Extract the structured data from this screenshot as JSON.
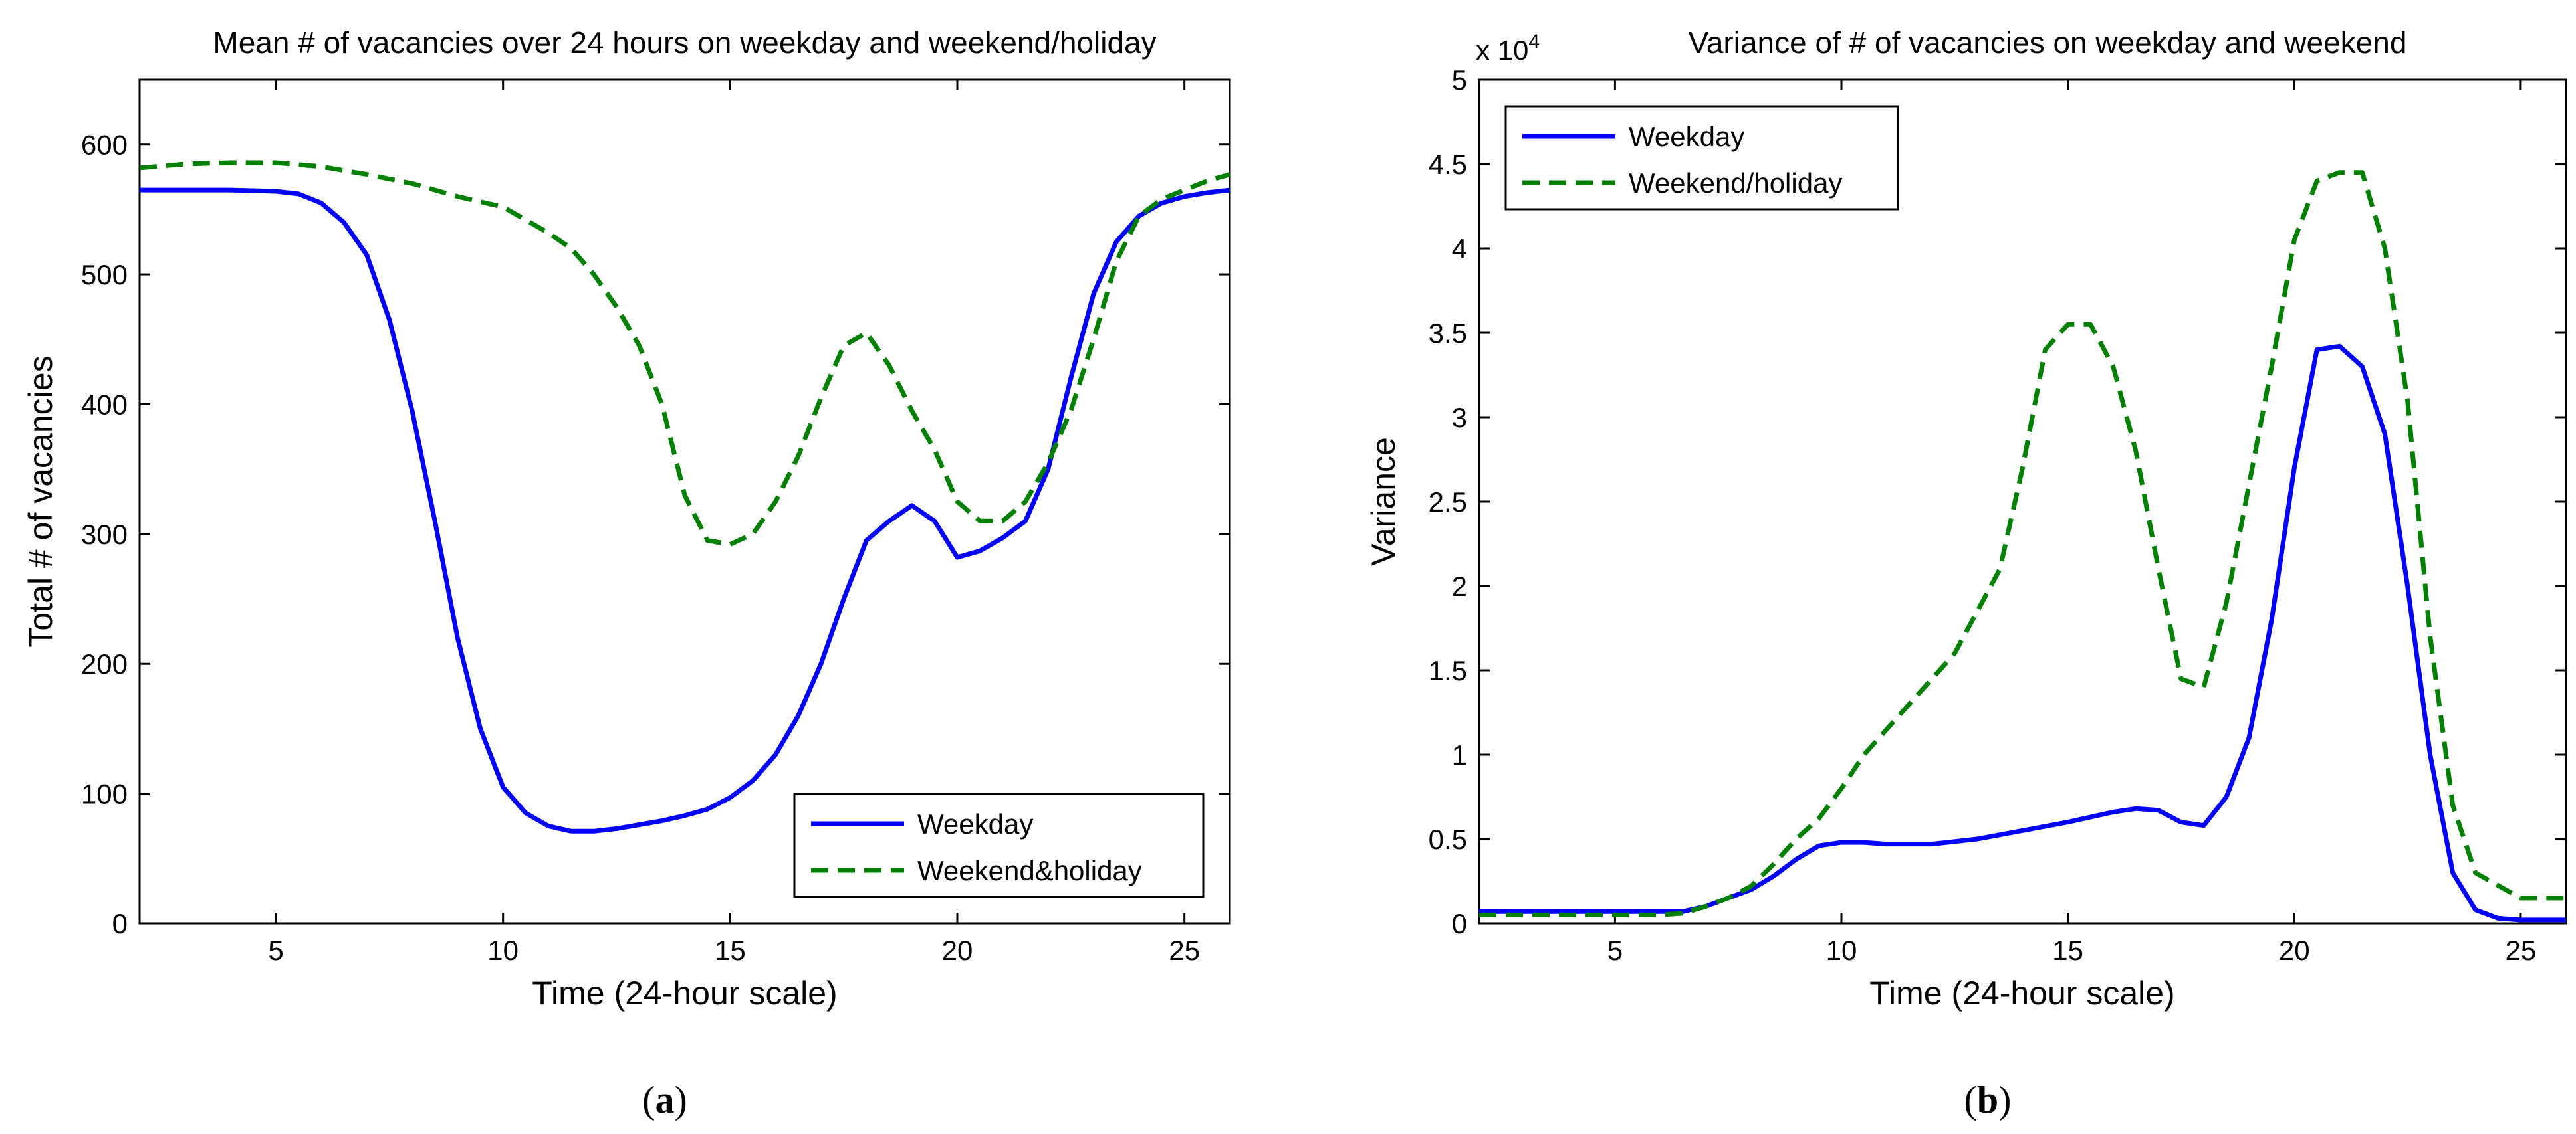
{
  "chart_data": [
    {
      "id": "a",
      "type": "line",
      "panel_label": "a",
      "title": "Mean # of vacancies over 24 hours on weekday and weekend/holiday",
      "xlabel": "Time (24-hour scale)",
      "ylabel": "Total # of vacancies",
      "xlim": [
        2,
        26
      ],
      "ylim": [
        0,
        650
      ],
      "xticks": [
        5,
        10,
        15,
        20,
        25
      ],
      "yticks": [
        0,
        100,
        200,
        300,
        400,
        500,
        600
      ],
      "tick_labels_x": [
        "5",
        "10",
        "15",
        "20",
        "25"
      ],
      "tick_labels_y": [
        "0",
        "100",
        "200",
        "300",
        "400",
        "500",
        "600"
      ],
      "multiplier": "",
      "legend_position": "bottom-right",
      "series": [
        {
          "name": "Weekday",
          "color": "#0000ff",
          "style": "solid",
          "x": [
            2,
            3,
            4,
            5,
            5.5,
            6,
            6.5,
            7,
            7.5,
            8,
            8.5,
            9,
            9.5,
            10,
            10.5,
            11,
            11.5,
            12,
            12.5,
            13,
            13.5,
            14,
            14.5,
            15,
            15.5,
            16,
            16.5,
            17,
            17.5,
            18,
            18.5,
            19,
            19.5,
            20,
            20.5,
            21,
            21.5,
            22,
            22.5,
            23,
            23.5,
            24,
            24.5,
            25,
            25.5,
            26
          ],
          "y": [
            565,
            565,
            565,
            564,
            562,
            555,
            540,
            515,
            465,
            395,
            310,
            220,
            150,
            105,
            85,
            75,
            71,
            71,
            73,
            76,
            79,
            83,
            88,
            97,
            110,
            130,
            160,
            200,
            250,
            295,
            310,
            322,
            310,
            282,
            287,
            297,
            310,
            350,
            420,
            485,
            525,
            545,
            555,
            560,
            563,
            565
          ]
        },
        {
          "name": "Weekend&holiday",
          "color": "#008000",
          "style": "dashed",
          "x": [
            2,
            3,
            4,
            5,
            6,
            7,
            8,
            9,
            10,
            11,
            11.5,
            12,
            12.5,
            13,
            13.5,
            14,
            14.5,
            15,
            15.5,
            16,
            16.5,
            17,
            17.5,
            18,
            18.5,
            19,
            19.5,
            20,
            20.5,
            21,
            21.5,
            22,
            22.5,
            23,
            23.5,
            24,
            24.5,
            25,
            25.5,
            26
          ],
          "y": [
            582,
            585,
            586,
            586,
            583,
            577,
            570,
            560,
            552,
            532,
            520,
            500,
            475,
            445,
            400,
            330,
            295,
            292,
            300,
            325,
            360,
            405,
            445,
            455,
            430,
            395,
            365,
            325,
            310,
            310,
            325,
            355,
            395,
            450,
            510,
            545,
            558,
            565,
            572,
            577
          ]
        }
      ]
    },
    {
      "id": "b",
      "type": "line",
      "panel_label": "b",
      "title": "Variance of # of vacancies on weekday and weekend",
      "xlabel": "Time (24-hour scale)",
      "ylabel": "Variance",
      "xlim": [
        2,
        26
      ],
      "ylim": [
        0,
        5
      ],
      "xticks": [
        5,
        10,
        15,
        20,
        25
      ],
      "yticks": [
        0,
        0.5,
        1,
        1.5,
        2,
        2.5,
        3,
        3.5,
        4,
        4.5,
        5
      ],
      "tick_labels_x": [
        "5",
        "10",
        "15",
        "20",
        "25"
      ],
      "tick_labels_y": [
        "0",
        "0.5",
        "1",
        "1.5",
        "2",
        "2.5",
        "3",
        "3.5",
        "4",
        "4.5",
        "5"
      ],
      "multiplier": "x 10",
      "multiplier_exponent": "4",
      "legend_position": "top-left",
      "series": [
        {
          "name": "Weekday",
          "color": "#0000ff",
          "style": "solid",
          "x": [
            2,
            4,
            6,
            6.5,
            7,
            7.5,
            8,
            8.5,
            9,
            9.5,
            10,
            10.5,
            11,
            12,
            13,
            14,
            15,
            16,
            16.5,
            17,
            17.5,
            18,
            18.5,
            19,
            19.5,
            20,
            20.5,
            21,
            21.5,
            22,
            22.5,
            23,
            23.5,
            24,
            24.5,
            25,
            26
          ],
          "y": [
            0.07,
            0.07,
            0.07,
            0.07,
            0.1,
            0.15,
            0.2,
            0.28,
            0.38,
            0.46,
            0.48,
            0.48,
            0.47,
            0.47,
            0.5,
            0.55,
            0.6,
            0.66,
            0.68,
            0.67,
            0.6,
            0.58,
            0.75,
            1.1,
            1.8,
            2.7,
            3.4,
            3.42,
            3.3,
            2.9,
            2.0,
            1.0,
            0.3,
            0.08,
            0.03,
            0.02,
            0.02
          ]
        },
        {
          "name": "Weekend/holiday",
          "color": "#008000",
          "style": "dashed",
          "x": [
            2,
            4,
            6,
            6.5,
            7,
            7.5,
            8,
            8.5,
            9,
            9.5,
            10,
            10.5,
            11,
            11.5,
            12,
            12.5,
            13,
            13.5,
            14,
            14.5,
            15,
            15.5,
            16,
            16.5,
            17,
            17.5,
            18,
            18.5,
            19,
            19.5,
            20,
            20.5,
            21,
            21.5,
            22,
            22.5,
            23,
            23.5,
            24,
            25,
            26
          ],
          "y": [
            0.05,
            0.05,
            0.05,
            0.06,
            0.1,
            0.15,
            0.22,
            0.35,
            0.5,
            0.62,
            0.8,
            1.0,
            1.15,
            1.3,
            1.45,
            1.6,
            1.85,
            2.1,
            2.7,
            3.4,
            3.55,
            3.55,
            3.3,
            2.8,
            2.1,
            1.45,
            1.4,
            1.9,
            2.6,
            3.3,
            4.05,
            4.4,
            4.45,
            4.45,
            4.0,
            3.1,
            1.7,
            0.7,
            0.3,
            0.15,
            0.15
          ]
        }
      ]
    }
  ]
}
